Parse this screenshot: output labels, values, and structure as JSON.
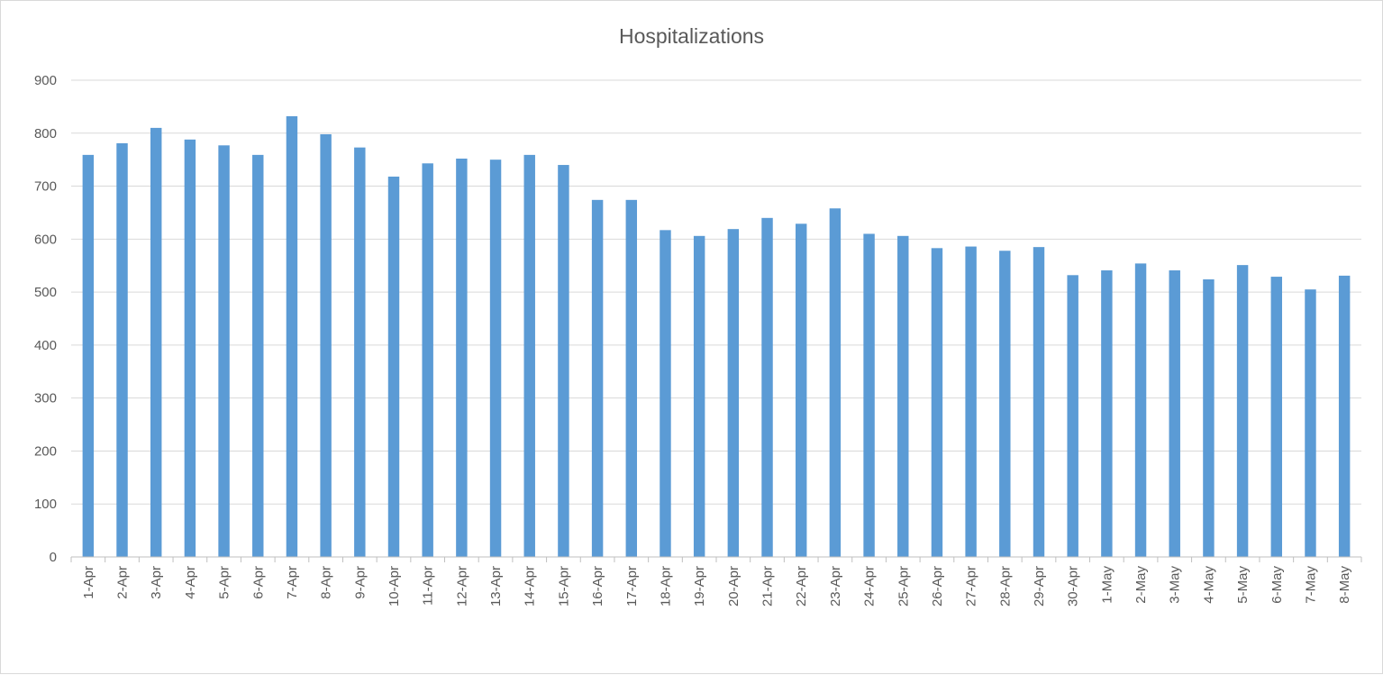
{
  "chart_data": {
    "type": "bar",
    "title": "Hospitalizations",
    "xlabel": "",
    "ylabel": "",
    "ylim": [
      0,
      900
    ],
    "yticks": [
      0,
      100,
      200,
      300,
      400,
      500,
      600,
      700,
      800,
      900
    ],
    "grid": true,
    "legend": "none",
    "bar_color": "#5b9bd5",
    "categories": [
      "1-Apr",
      "2-Apr",
      "3-Apr",
      "4-Apr",
      "5-Apr",
      "6-Apr",
      "7-Apr",
      "8-Apr",
      "9-Apr",
      "10-Apr",
      "11-Apr",
      "12-Apr",
      "13-Apr",
      "14-Apr",
      "15-Apr",
      "16-Apr",
      "17-Apr",
      "18-Apr",
      "19-Apr",
      "20-Apr",
      "21-Apr",
      "22-Apr",
      "23-Apr",
      "24-Apr",
      "25-Apr",
      "26-Apr",
      "27-Apr",
      "28-Apr",
      "29-Apr",
      "30-Apr",
      "1-May",
      "2-May",
      "3-May",
      "4-May",
      "5-May",
      "6-May",
      "7-May",
      "8-May"
    ],
    "values": [
      759,
      781,
      810,
      788,
      777,
      759,
      832,
      798,
      773,
      718,
      743,
      752,
      750,
      759,
      740,
      674,
      674,
      617,
      606,
      619,
      640,
      629,
      658,
      610,
      606,
      583,
      586,
      578,
      585,
      532,
      541,
      554,
      541,
      524,
      551,
      529,
      505,
      531
    ]
  }
}
